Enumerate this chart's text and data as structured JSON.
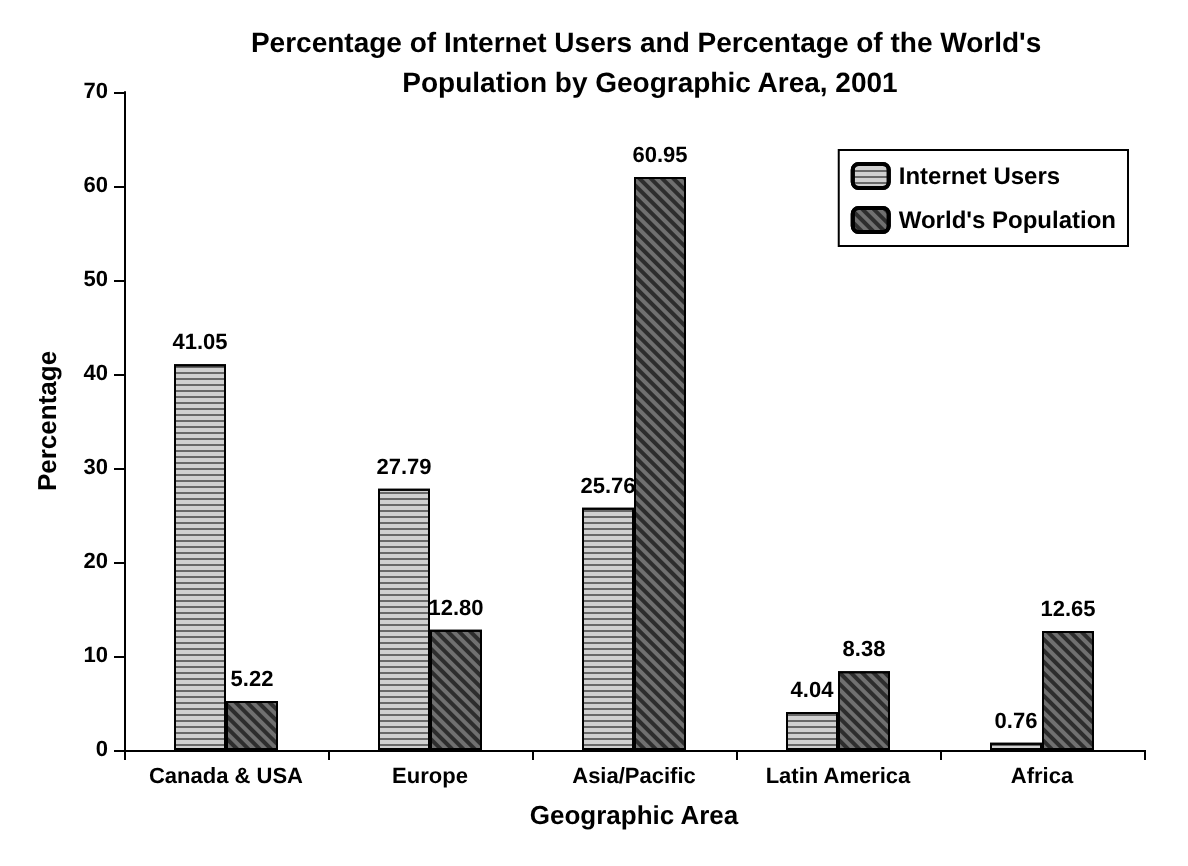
{
  "chart_data": {
    "type": "bar",
    "title": "Percentage of Internet Users and Percentage of the World's Population by Geographic Area, 2001",
    "xlabel": "Geographic Area",
    "ylabel": "Percentage",
    "categories": [
      "Canada & USA",
      "Europe",
      "Asia/Pacific",
      "Latin America",
      "Africa"
    ],
    "series": [
      {
        "name": "Internet Users",
        "color": "#d0d0d0",
        "values": [
          41.05,
          27.79,
          25.76,
          4.04,
          0.76
        ],
        "value_labels": [
          "41.05",
          "27.79",
          "25.76",
          "4.04",
          "0.76"
        ]
      },
      {
        "name": "World's Population",
        "color": "#707070",
        "values": [
          5.22,
          12.8,
          60.95,
          8.38,
          12.65
        ],
        "value_labels": [
          "5.22",
          "12.80",
          "60.95",
          "8.38",
          "12.65"
        ]
      }
    ],
    "ylim": [
      0,
      70
    ],
    "yticks": [
      0,
      10,
      20,
      30,
      40,
      50,
      60,
      70
    ],
    "grid": false,
    "legend": "top right"
  }
}
